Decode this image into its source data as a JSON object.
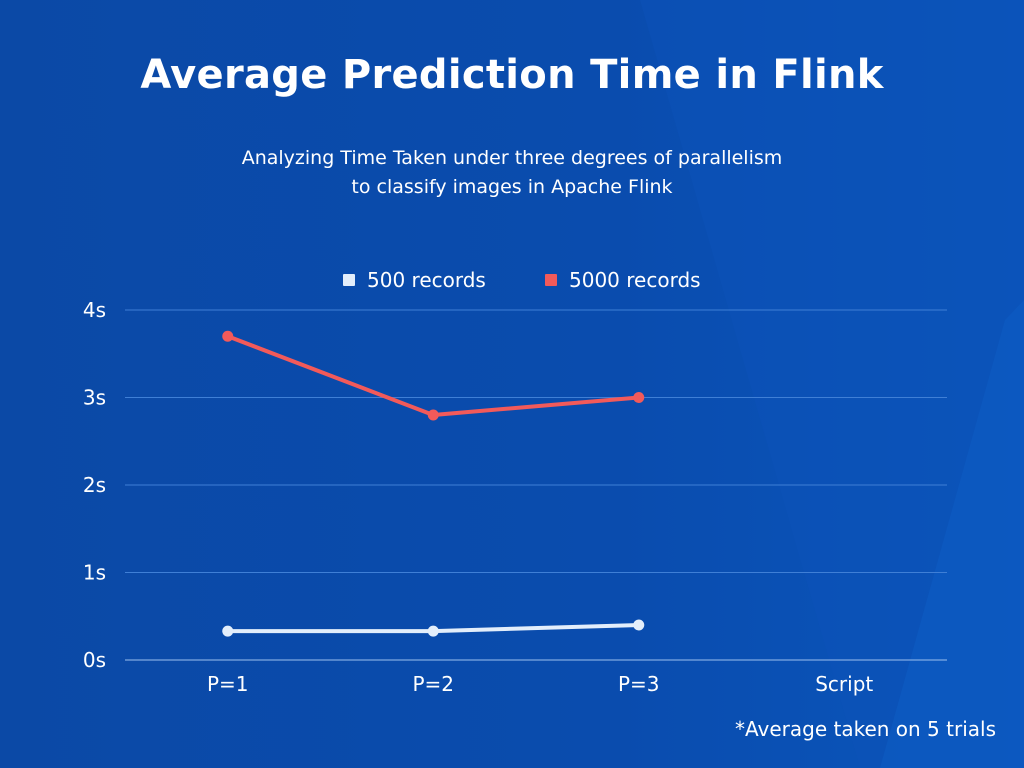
{
  "page": {
    "background": "#0a4aa8"
  },
  "header": {
    "title": "Average Prediction Time in Flink",
    "subtitle_line1": "Analyzing Time Taken under three degrees of parallelism",
    "subtitle_line2": "to classify images in Apache Flink"
  },
  "footnote": "*Average taken on 5 trials",
  "chart_data": {
    "type": "line",
    "categories": [
      "P=1",
      "P=2",
      "P=3",
      "Script"
    ],
    "series": [
      {
        "name": "500 records",
        "color": "#e3eefb",
        "values": [
          0.33,
          0.33,
          0.4,
          null
        ]
      },
      {
        "name": "5000 records",
        "color": "#f25a5a",
        "values": [
          3.7,
          2.8,
          3.0,
          null
        ]
      }
    ],
    "y_ticks": [
      0,
      1,
      2,
      3,
      4
    ],
    "y_tick_labels": [
      "0s",
      "1s",
      "2s",
      "3s",
      "4s"
    ],
    "ylim": [
      0,
      4
    ],
    "grid": true,
    "legend_position": "top-center",
    "gridline_color": "#3f7fd6",
    "text_color": "#ffffff"
  }
}
